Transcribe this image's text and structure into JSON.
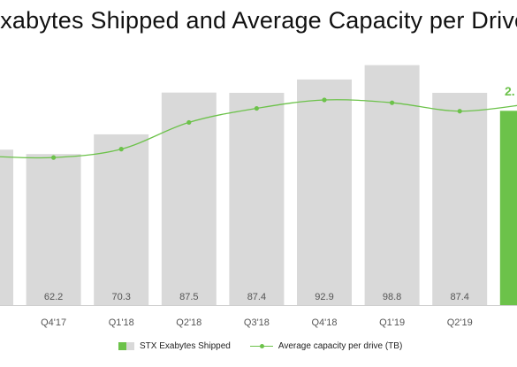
{
  "title": "Exabytes Shipped and Average Capacity per Drive",
  "colors": {
    "bar": "#d9d9d9",
    "bar_highlight": "#6cc24a",
    "line": "#6cc24a",
    "label": "#555555",
    "axis": "#cfcfcf"
  },
  "legend": {
    "bars_label": "STX Exabytes Shipped",
    "line_label": "Average capacity per drive (TB)"
  },
  "chart_data": {
    "type": "bar",
    "categories": [
      "",
      "Q4'17",
      "Q1'18",
      "Q2'18",
      "Q3'18",
      "Q4'18",
      "Q1'19",
      "Q2'19",
      ""
    ],
    "series": [
      {
        "name": "STX Exabytes Shipped",
        "type": "bar",
        "values": [
          64.0,
          62.2,
          70.3,
          87.5,
          87.4,
          92.9,
          98.8,
          87.4,
          80.0
        ],
        "data_labels": [
          "",
          "62.2",
          "70.3",
          "87.5",
          "87.4",
          "92.9",
          "98.8",
          "87.4",
          ""
        ]
      },
      {
        "name": "Average capacity per drive (TB)",
        "type": "line",
        "values": [
          2.06,
          2.05,
          2.11,
          2.3,
          2.4,
          2.46,
          2.44,
          2.38,
          2.43
        ]
      }
    ],
    "partial_line_label": "2.",
    "ylim_bars": [
      0,
      110
    ],
    "ylim_line": [
      1.0,
      2.6
    ]
  }
}
